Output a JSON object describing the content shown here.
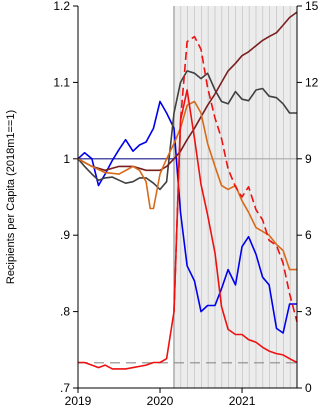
{
  "chart_data": {
    "type": "line",
    "title": "",
    "xlabel": "",
    "ylabel": "Recipients per Capita (2018m1==1)",
    "y2label": "",
    "xlim": [
      2019.0,
      2021.67
    ],
    "ylim": [
      0.7,
      1.2
    ],
    "y2lim": [
      0,
      15
    ],
    "x_ticks": [
      2019,
      2020,
      2021
    ],
    "x_tick_labels": [
      "2019",
      "2020",
      "2021"
    ],
    "y_ticks": [
      0.7,
      0.8,
      0.9,
      1.0,
      1.1,
      1.2
    ],
    "y_tick_labels": [
      ".7",
      ".8",
      ".9",
      "1",
      "1.1",
      "1.2"
    ],
    "y2_ticks": [
      0,
      3,
      6,
      9,
      12,
      15
    ],
    "y2_tick_labels": [
      "0",
      "3",
      "6",
      "9",
      "12",
      "15"
    ],
    "grid": false,
    "legend": "none",
    "shaded_region": {
      "x_start": 2020.17,
      "x_end": 2021.67,
      "color": "#ececec",
      "line_color": "#bbbbbb"
    },
    "reference_lines": [
      {
        "axis": "left",
        "y": 1.0,
        "x_from": 2019.0,
        "x_to": 2020.17,
        "color": "#1a1a8c",
        "dash": "solid"
      },
      {
        "axis": "left",
        "y": 1.0,
        "x_from": 2020.17,
        "x_to": 2021.67,
        "color": "#aaaaaa",
        "dash": "solid"
      },
      {
        "axis": "left",
        "y": 0.733,
        "x_from": 2019.0,
        "x_to": 2021.67,
        "color": "#8c8c8c",
        "dash": "long-dash"
      }
    ],
    "series": [
      {
        "axis": "left",
        "color": "#0000ee",
        "dash": "solid",
        "x": [
          2019.0,
          2019.08,
          2019.17,
          2019.25,
          2019.33,
          2019.42,
          2019.5,
          2019.58,
          2019.67,
          2019.75,
          2019.83,
          2019.92,
          2020.0,
          2020.08,
          2020.17,
          2020.25,
          2020.33,
          2020.42,
          2020.5,
          2020.58,
          2020.67,
          2020.75,
          2020.83,
          2020.92,
          2021.0,
          2021.08,
          2021.17,
          2021.25,
          2021.33,
          2021.42,
          2021.5,
          2021.58,
          2021.67
        ],
        "y": [
          1.0,
          1.008,
          1.0,
          0.965,
          0.98,
          0.998,
          1.012,
          1.025,
          1.01,
          1.018,
          1.022,
          1.04,
          1.075,
          1.06,
          1.04,
          0.93,
          0.86,
          0.84,
          0.8,
          0.808,
          0.808,
          0.83,
          0.855,
          0.835,
          0.885,
          0.898,
          0.875,
          0.845,
          0.835,
          0.778,
          0.772,
          0.81,
          0.81
        ]
      },
      {
        "axis": "left",
        "color": "#404040",
        "dash": "solid",
        "x": [
          2019.0,
          2019.08,
          2019.17,
          2019.25,
          2019.33,
          2019.42,
          2019.5,
          2019.58,
          2019.67,
          2019.75,
          2019.83,
          2019.92,
          2020.0,
          2020.08,
          2020.17,
          2020.25,
          2020.33,
          2020.42,
          2020.5,
          2020.58,
          2020.67,
          2020.75,
          2020.83,
          2020.92,
          2021.0,
          2021.08,
          2021.17,
          2021.25,
          2021.33,
          2021.42,
          2021.5,
          2021.58,
          2021.67
        ],
        "y": [
          1.0,
          0.99,
          0.98,
          0.972,
          0.975,
          0.976,
          0.972,
          0.968,
          0.97,
          0.975,
          0.975,
          0.968,
          0.96,
          0.97,
          1.06,
          1.1,
          1.115,
          1.112,
          1.105,
          1.112,
          1.09,
          1.075,
          1.072,
          1.088,
          1.078,
          1.076,
          1.09,
          1.092,
          1.082,
          1.08,
          1.072,
          1.06,
          1.06
        ]
      },
      {
        "axis": "left",
        "color": "#7a1f1f",
        "dash": "solid",
        "x": [
          2019.0,
          2019.17,
          2019.33,
          2019.5,
          2019.67,
          2019.83,
          2020.0,
          2020.08,
          2020.17,
          2020.25,
          2020.33,
          2020.42,
          2020.5,
          2020.58,
          2020.67,
          2020.75,
          2020.83,
          2020.92,
          2021.0,
          2021.08,
          2021.17,
          2021.25,
          2021.33,
          2021.42,
          2021.5,
          2021.58,
          2021.67
        ],
        "y": [
          1.0,
          0.99,
          0.985,
          0.99,
          0.99,
          0.985,
          0.985,
          0.99,
          1.0,
          1.01,
          1.025,
          1.04,
          1.055,
          1.07,
          1.085,
          1.1,
          1.115,
          1.125,
          1.135,
          1.14,
          1.148,
          1.155,
          1.16,
          1.165,
          1.175,
          1.185,
          1.192
        ]
      },
      {
        "axis": "left",
        "color": "#d86a1a",
        "dash": "solid",
        "x": [
          2019.0,
          2019.17,
          2019.33,
          2019.5,
          2019.67,
          2019.75,
          2019.83,
          2019.88,
          2019.92,
          2020.0,
          2020.08,
          2020.17,
          2020.25,
          2020.33,
          2020.42,
          2020.5,
          2020.58,
          2020.67,
          2020.75,
          2020.83,
          2020.92,
          2021.0,
          2021.08,
          2021.17,
          2021.25,
          2021.33,
          2021.42,
          2021.5,
          2021.58,
          2021.67
        ],
        "y": [
          1.0,
          0.99,
          0.982,
          0.98,
          0.99,
          0.985,
          0.97,
          0.935,
          0.935,
          0.98,
          1.0,
          1.02,
          1.04,
          1.07,
          1.075,
          1.06,
          1.02,
          0.99,
          0.965,
          0.96,
          0.965,
          0.945,
          0.93,
          0.91,
          0.905,
          0.9,
          0.888,
          0.88,
          0.855,
          0.855
        ]
      },
      {
        "axis": "right",
        "color": "#ee1111",
        "dash": "solid",
        "x": [
          2019.0,
          2019.08,
          2019.17,
          2019.25,
          2019.33,
          2019.42,
          2019.5,
          2019.58,
          2019.67,
          2019.75,
          2019.83,
          2019.92,
          2020.0,
          2020.08,
          2020.17,
          2020.25,
          2020.33,
          2020.42,
          2020.5,
          2020.58,
          2020.67,
          2020.75,
          2020.83,
          2020.92,
          2021.0,
          2021.08,
          2021.17,
          2021.25,
          2021.33,
          2021.42,
          2021.5,
          2021.58,
          2021.67
        ],
        "y": [
          1.0,
          1.0,
          0.9,
          0.8,
          0.9,
          0.75,
          0.75,
          0.75,
          0.8,
          0.85,
          0.9,
          1.0,
          1.0,
          1.15,
          3.0,
          10.5,
          11.7,
          9.8,
          8.0,
          6.8,
          5.3,
          3.2,
          2.3,
          2.1,
          2.1,
          1.9,
          1.8,
          1.6,
          1.45,
          1.35,
          1.3,
          1.15,
          1.0
        ]
      },
      {
        "axis": "right",
        "color": "#ee1111",
        "dash": "dashed",
        "x": [
          2020.17,
          2020.25,
          2020.33,
          2020.42,
          2020.5,
          2020.58,
          2020.67,
          2020.75,
          2020.83,
          2020.92,
          2021.0,
          2021.08,
          2021.17,
          2021.25,
          2021.33,
          2021.42,
          2021.5,
          2021.58,
          2021.67
        ],
        "y": [
          3.0,
          10.5,
          13.6,
          13.8,
          13.3,
          11.8,
          10.6,
          9.8,
          8.6,
          7.9,
          7.5,
          7.9,
          7.0,
          6.6,
          5.8,
          5.6,
          4.9,
          3.7,
          2.6
        ]
      }
    ]
  }
}
